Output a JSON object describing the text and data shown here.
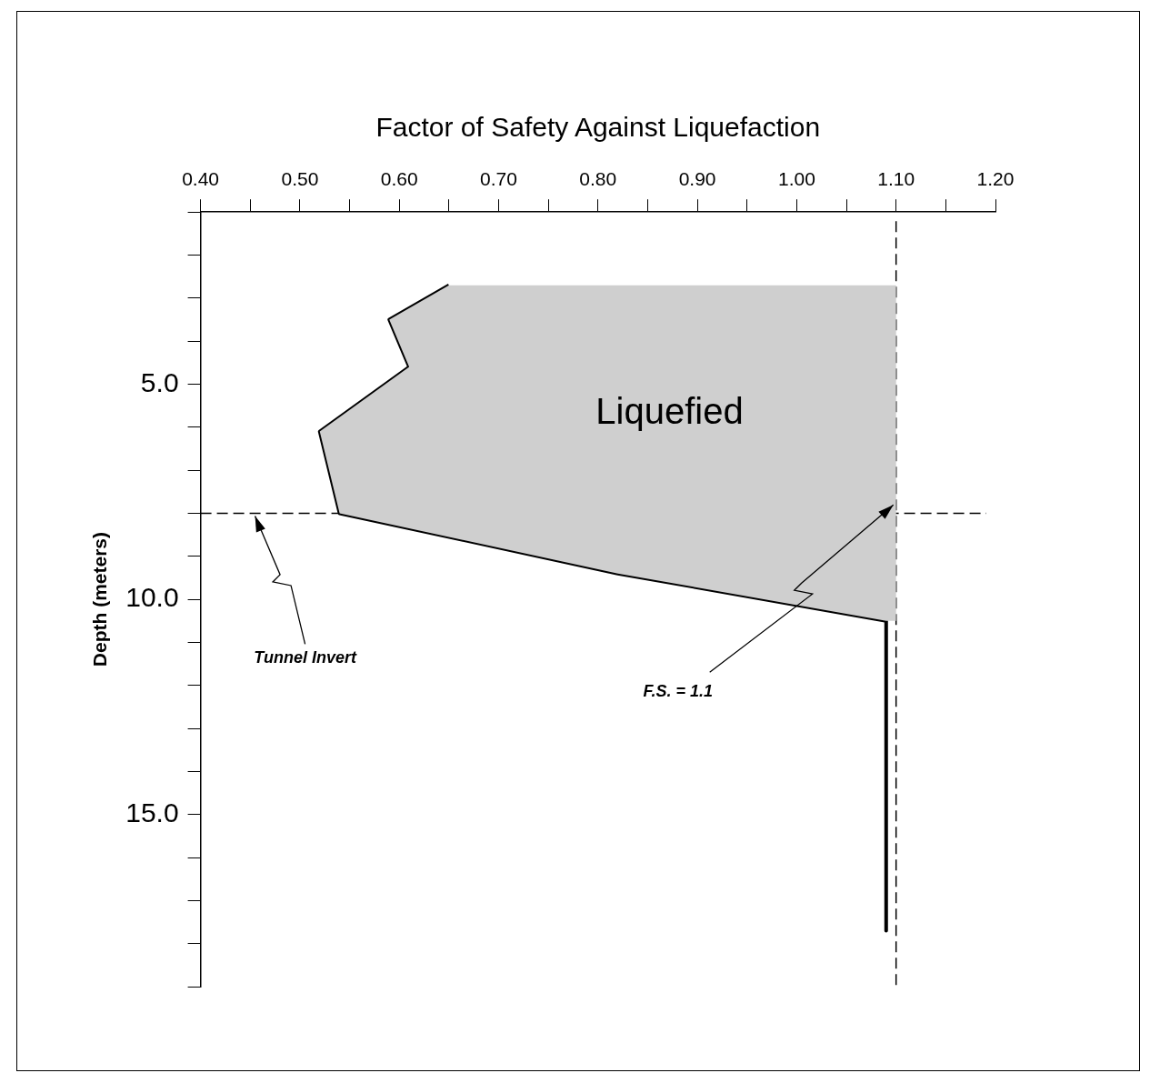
{
  "chart_data": {
    "type": "line",
    "xlabel": "Factor of Safety Against Liquefaction",
    "ylabel": "Depth (meters)",
    "xlim": [
      0.4,
      1.2
    ],
    "xticks": [
      {
        "value": 0.4,
        "label": "0.40"
      },
      {
        "value": 0.45,
        "label": null
      },
      {
        "value": 0.5,
        "label": "0.50"
      },
      {
        "value": 0.55,
        "label": null
      },
      {
        "value": 0.6,
        "label": "0.60"
      },
      {
        "value": 0.65,
        "label": null
      },
      {
        "value": 0.7,
        "label": "0.70"
      },
      {
        "value": 0.75,
        "label": null
      },
      {
        "value": 0.8,
        "label": "0.80"
      },
      {
        "value": 0.85,
        "label": null
      },
      {
        "value": 0.9,
        "label": "0.90"
      },
      {
        "value": 0.95,
        "label": null
      },
      {
        "value": 1.0,
        "label": "1.00"
      },
      {
        "value": 1.05,
        "label": null
      },
      {
        "value": 1.1,
        "label": "1.10"
      },
      {
        "value": 1.15,
        "label": null
      },
      {
        "value": 1.2,
        "label": "1.20"
      }
    ],
    "ylim": [
      19,
      1
    ],
    "yticks": [
      {
        "value": 1,
        "label": null
      },
      {
        "value": 2,
        "label": null
      },
      {
        "value": 3,
        "label": null
      },
      {
        "value": 4,
        "label": null
      },
      {
        "value": 5,
        "label": "5.0"
      },
      {
        "value": 6,
        "label": null
      },
      {
        "value": 7,
        "label": null
      },
      {
        "value": 8,
        "label": null
      },
      {
        "value": 9,
        "label": null
      },
      {
        "value": 10,
        "label": "10.0"
      },
      {
        "value": 11,
        "label": null
      },
      {
        "value": 12,
        "label": null
      },
      {
        "value": 13,
        "label": null
      },
      {
        "value": 14,
        "label": null
      },
      {
        "value": 15,
        "label": "15.0"
      },
      {
        "value": 16,
        "label": null
      },
      {
        "value": 17,
        "label": null
      },
      {
        "value": 18,
        "label": null
      },
      {
        "value": 19,
        "label": null
      }
    ],
    "series": [
      {
        "type": "area",
        "color": "#cfcfcf",
        "x": [
          0.65,
          0.59,
          0.61,
          0.52,
          0.54,
          0.82,
          1.09,
          1.1,
          1.1
        ],
        "values": [
          2.7,
          3.5,
          4.6,
          6.1,
          8.0,
          9.4,
          10.5,
          10.5,
          2.7
        ]
      },
      {
        "color": "#000000",
        "x": [
          0.65,
          0.59,
          0.61,
          0.52,
          0.54,
          0.82,
          1.09,
          1.09
        ],
        "values": [
          2.7,
          3.5,
          4.6,
          6.1,
          8.0,
          9.4,
          10.5,
          17.7
        ]
      }
    ],
    "ref_lines": [
      {
        "axis": "x",
        "value": 1.1,
        "label": "F.S. = 1.1",
        "line_style": "dashed",
        "color": "#000000"
      },
      {
        "axis": "y",
        "value": 8.0,
        "label": "Tunnel Invert",
        "line_style": "dashed",
        "color": "#000000"
      }
    ],
    "annotations": [
      "Liquefied"
    ],
    "marker": "none",
    "line_style": "solid",
    "grid": false,
    "legend": false
  }
}
